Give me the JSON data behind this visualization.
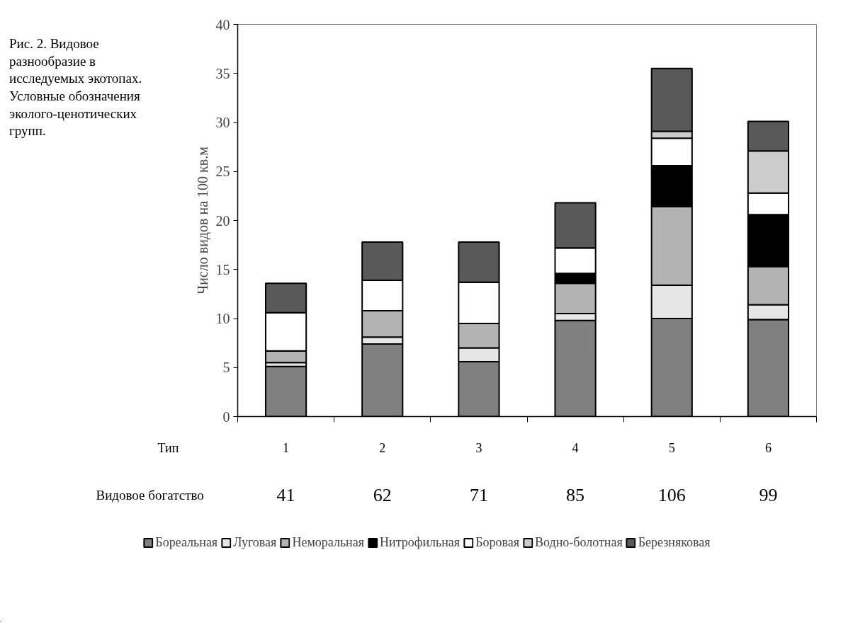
{
  "chart_data": {
    "type": "bar",
    "stacked": true,
    "title": "Рис. 2. Видовое разнообразие в исследуемых экотопах. Условные обозначения эколого-ценотических групп.",
    "ylabel": "Число видов на 100 кв.м",
    "xlabel": "Тип",
    "categories": [
      "1",
      "2",
      "3",
      "4",
      "5",
      "6"
    ],
    "series": [
      {
        "name": "Бореальная",
        "color": "#808080",
        "values": [
          5.1,
          7.4,
          5.6,
          9.8,
          10.0,
          9.9
        ]
      },
      {
        "name": "Луговая",
        "color": "#e6e6e6",
        "values": [
          0.4,
          0.7,
          1.4,
          0.7,
          3.4,
          1.5
        ]
      },
      {
        "name": "Неморальная",
        "color": "#b3b3b3",
        "values": [
          1.2,
          2.7,
          2.5,
          3.1,
          8.0,
          3.9
        ]
      },
      {
        "name": "Нитрофильная",
        "color": "#000000",
        "values": [
          0,
          0,
          0,
          1.0,
          4.2,
          5.3
        ]
      },
      {
        "name": "Боровая",
        "color": "#ffffff",
        "values": [
          3.9,
          3.1,
          4.2,
          2.6,
          2.8,
          2.2
        ]
      },
      {
        "name": "Водно-болотная",
        "color": "#cccccc",
        "values": [
          0,
          0,
          0,
          0,
          0.7,
          4.3
        ]
      },
      {
        "name": "Березняковая",
        "color": "#595959",
        "values": [
          3.0,
          3.9,
          4.1,
          4.6,
          6.4,
          3.0
        ]
      }
    ],
    "ylim": [
      0,
      40
    ],
    "yticks": [
      0,
      5,
      10,
      15,
      20,
      25,
      30,
      35,
      40
    ],
    "grid": false,
    "legend": "bottom",
    "annotations": [
      "Видовое богатство",
      "41",
      "62",
      "71",
      "85",
      "106",
      "99"
    ]
  }
}
